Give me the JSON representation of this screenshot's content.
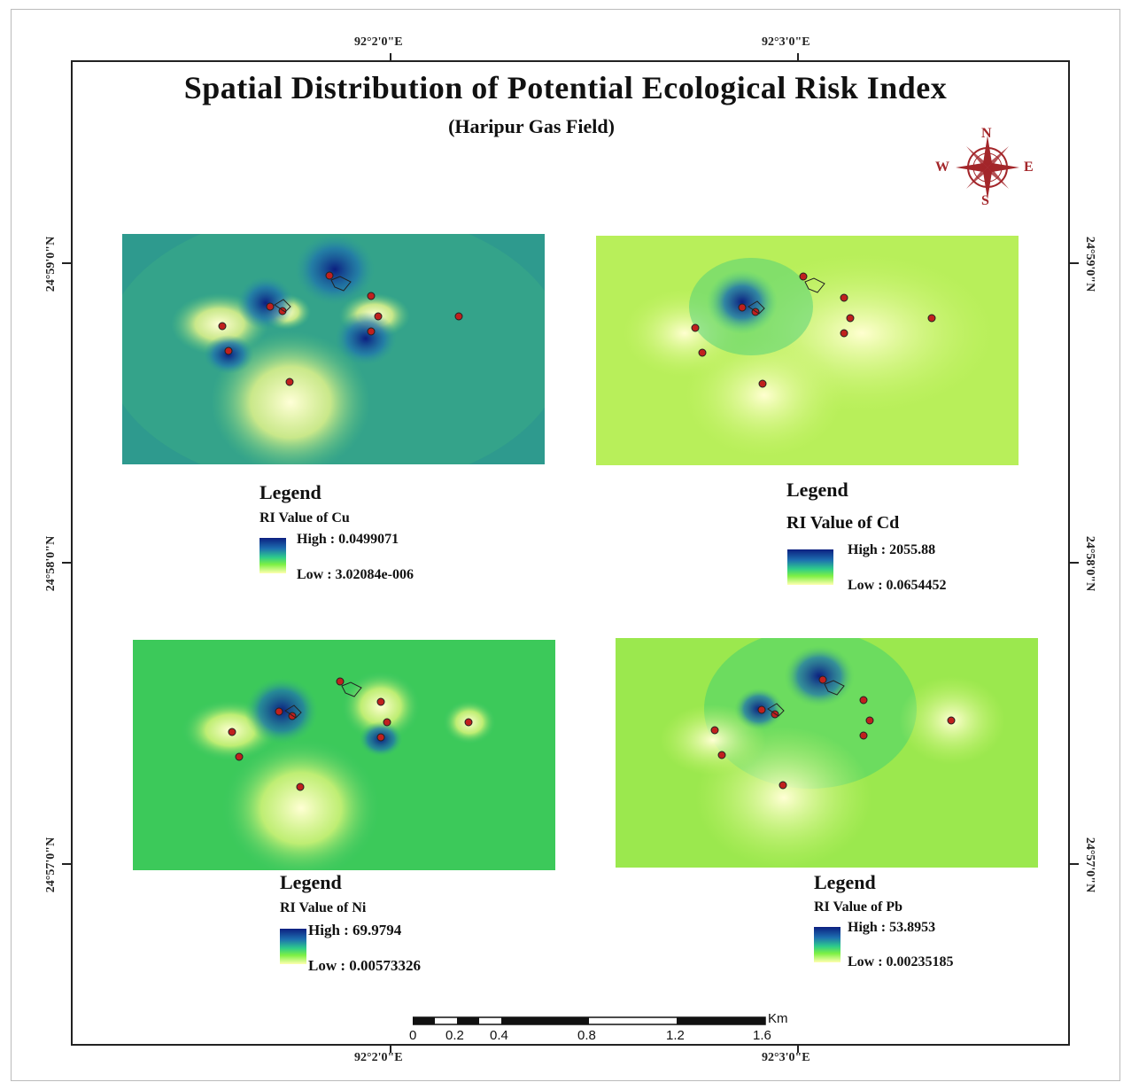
{
  "title": "Spatial Distribution of Potential Ecological Risk Index",
  "subtitle": "(Haripur Gas Field)",
  "graticule": {
    "top": [
      "92°2'0\"E",
      "92°3'0\"E"
    ],
    "bottom": [
      "92°2'0\"E",
      "92°3'0\"E"
    ],
    "left": [
      "24°59'0\"N",
      "24°58'0\"N",
      "24°57'0\"N"
    ],
    "right": [
      "24°59'0\"N",
      "24°58'0\"N",
      "24°57'0\"N"
    ]
  },
  "north_arrow": {
    "n": "N",
    "s": "S",
    "e": "E",
    "w": "W",
    "color": "#a3262a"
  },
  "panels": [
    {
      "legend_title": "Legend",
      "label": "RI Value of Cu",
      "high": "High : 0.0499071",
      "low": "Low : 3.02084e-006"
    },
    {
      "legend_title": "Legend",
      "label": "RI Value of Cd",
      "high": "High : 2055.88",
      "low": "Low : 0.0654452"
    },
    {
      "legend_title": "Legend",
      "label": "RI Value of Ni",
      "high": "High : 69.9794",
      "low": "Low : 0.00573326"
    },
    {
      "legend_title": "Legend",
      "label": "RI Value of Pb",
      "high": "High : 53.8953",
      "low": "Low : 0.00235185"
    }
  ],
  "scale_bar": {
    "unit": "Km",
    "labels": [
      "0",
      "0.2",
      "0.4",
      "0.8",
      "1.2",
      "1.6"
    ]
  },
  "colors": {
    "high": "#0c1f80",
    "mid": "#2ecc8a",
    "low": "#ffffb0",
    "sample_point": "#c0201e"
  }
}
